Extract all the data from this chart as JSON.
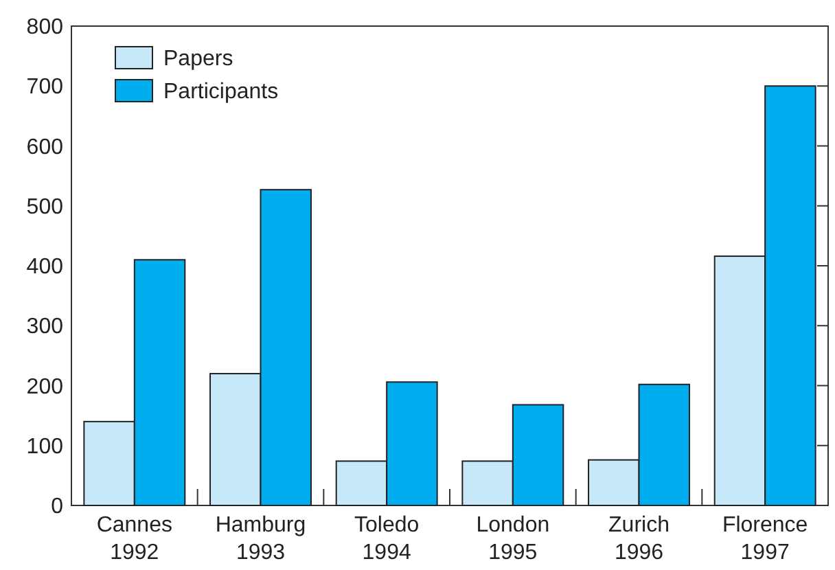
{
  "chart_data": {
    "type": "bar",
    "categories": [
      "Cannes 1992",
      "Hamburg 1993",
      "Toledo 1994",
      "London 1995",
      "Zurich 1996",
      "Florence 1997"
    ],
    "series": [
      {
        "name": "Papers",
        "color": "#c6e8f8",
        "values": [
          140,
          220,
          74,
          74,
          76,
          416
        ]
      },
      {
        "name": "Participants",
        "color": "#00aeef",
        "values": [
          410,
          527,
          206,
          168,
          202,
          700
        ]
      }
    ],
    "ylim": [
      0,
      800
    ],
    "yticks": [
      0,
      100,
      200,
      300,
      400,
      500,
      600,
      700,
      800
    ],
    "legend": "top left",
    "grid": false
  }
}
